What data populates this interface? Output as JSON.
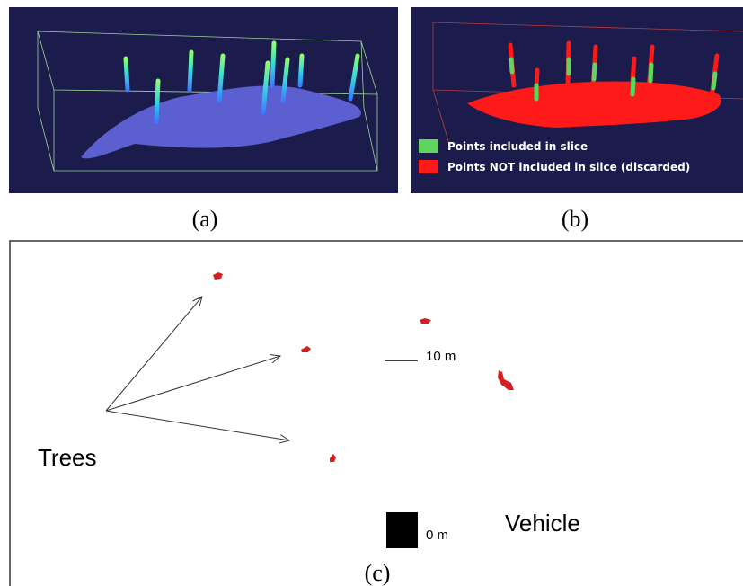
{
  "panels": [
    {
      "label": "(a)"
    },
    {
      "label": "(b)",
      "legend": [
        "Points included in slice",
        "Points NOT included in slice (discarded)"
      ]
    },
    {
      "label": "(c)",
      "scale_label": "10 m",
      "origin_label": "0 m",
      "trees_label": "Trees",
      "vehicle_label": "Vehicle"
    }
  ]
}
